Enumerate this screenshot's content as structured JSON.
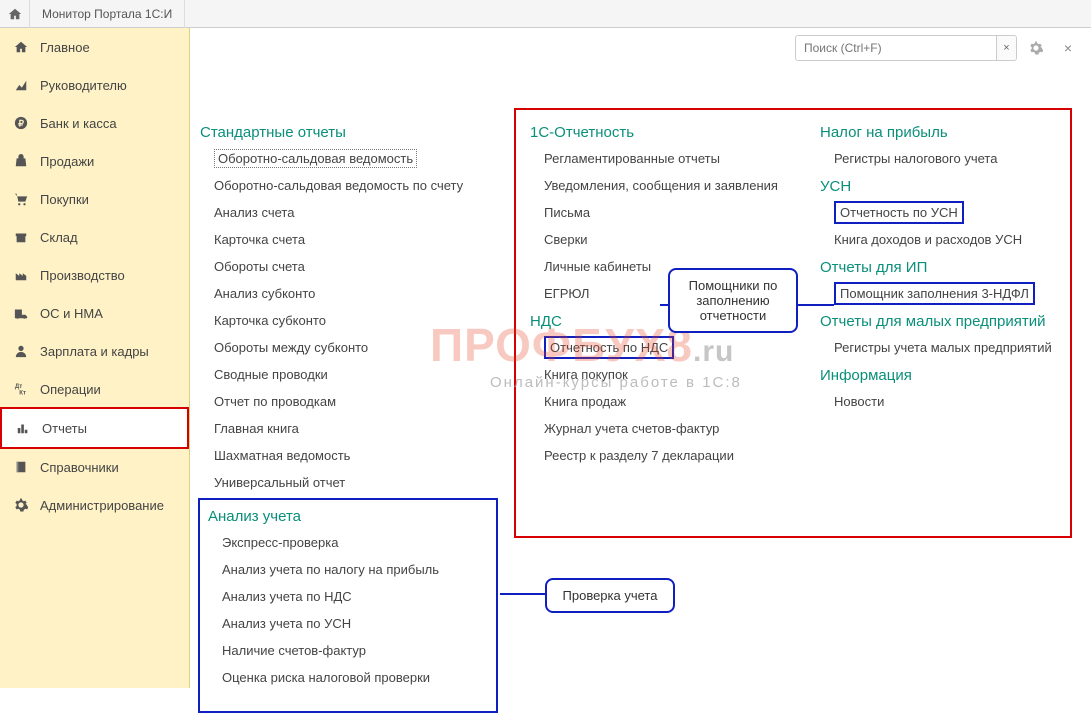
{
  "topbar": {
    "tab_label": "Монитор Портала 1С:И"
  },
  "search": {
    "placeholder": "Поиск (Ctrl+F)"
  },
  "sidebar": {
    "items": [
      {
        "icon": "home",
        "label": "Главное"
      },
      {
        "icon": "chart",
        "label": "Руководителю"
      },
      {
        "icon": "ruble",
        "label": "Банк и касса"
      },
      {
        "icon": "bag",
        "label": "Продажи"
      },
      {
        "icon": "cart",
        "label": "Покупки"
      },
      {
        "icon": "box",
        "label": "Склад"
      },
      {
        "icon": "factory",
        "label": "Производство"
      },
      {
        "icon": "truck",
        "label": "ОС и НМА"
      },
      {
        "icon": "person",
        "label": "Зарплата и кадры"
      },
      {
        "icon": "dtkr",
        "label": "Операции"
      },
      {
        "icon": "bars",
        "label": "Отчеты",
        "active": true
      },
      {
        "icon": "book",
        "label": "Справочники"
      },
      {
        "icon": "gear",
        "label": "Администрирование"
      }
    ]
  },
  "watermark": {
    "main": "ПРОФБУХ8",
    "suffix": ".ru",
    "sub": "Онлайн-курсы работе в 1С:8"
  },
  "col1": {
    "title": "Стандартные отчеты",
    "items": [
      "Оборотно-сальдовая ведомость",
      "Оборотно-сальдовая ведомость по счету",
      "Анализ счета",
      "Карточка счета",
      "Обороты счета",
      "Анализ субконто",
      "Карточка субконто",
      "Обороты между субконто",
      "Сводные проводки",
      "Отчет по проводкам",
      "Главная книга",
      "Шахматная ведомость",
      "Универсальный отчет"
    ]
  },
  "col2a": {
    "title": "1С-Отчетность",
    "items": [
      "Регламентированные отчеты",
      "Уведомления, сообщения и заявления",
      "Письма",
      "Сверки",
      "Личные кабинеты",
      "ЕГРЮЛ"
    ]
  },
  "col2b": {
    "title": "НДС",
    "items": [
      "Отчетность по НДС",
      "Книга покупок",
      "Книга продаж",
      "Журнал учета счетов-фактур",
      "Реестр к разделу 7 декларации"
    ]
  },
  "col3a": {
    "title": "Налог на прибыль",
    "items": [
      "Регистры налогового учета"
    ]
  },
  "col3b": {
    "title": "УСН",
    "items": [
      "Отчетность по УСН",
      "Книга доходов и расходов УСН"
    ]
  },
  "col3c": {
    "title": "Отчеты для ИП",
    "items": [
      "Помощник заполнения 3-НДФЛ"
    ]
  },
  "col3d": {
    "title": "Отчеты для малых предприятий",
    "items": [
      "Регистры учета малых предприятий"
    ]
  },
  "col3e": {
    "title": "Информация",
    "items": [
      "Новости"
    ]
  },
  "analysis": {
    "title": "Анализ учета",
    "items": [
      "Экспресс-проверка",
      "Анализ учета по налогу на прибыль",
      "Анализ учета по НДС",
      "Анализ учета по УСН",
      "Наличие счетов-фактур",
      "Оценка риска налоговой проверки"
    ]
  },
  "callouts": {
    "helpers": "Помощники по\nзаполнению\nотчетности",
    "check": "Проверка учета"
  },
  "colors": {
    "sidebar_bg": "#fff2c6",
    "accent_teal": "#0a8f7a",
    "highlight_red": "#d60000",
    "highlight_blue": "#1020c0"
  }
}
